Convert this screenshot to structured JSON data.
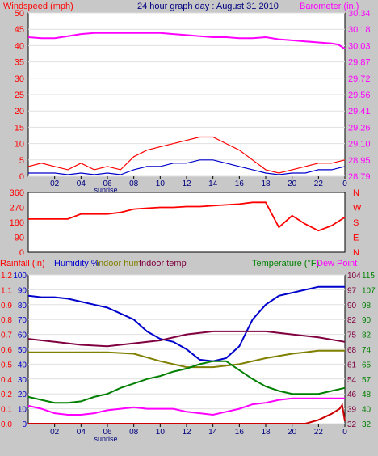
{
  "colors": {
    "background": "#c8c8c8",
    "plot_bg": "#ffffff",
    "grid": "#000000",
    "red": "#ff0000",
    "blue": "#0000cc",
    "magenta": "#ff00ff",
    "olive": "#808000",
    "maroon": "#800040",
    "green": "#008000",
    "darkred": "#cc0000"
  },
  "header": {
    "wind_label": "Windspeed (mph)",
    "title": "24 hour graph day : August 31 2010",
    "baro_label": "Barometer (in.)"
  },
  "bottom_header": {
    "rain_label": "Rainfall (in)",
    "humidity_label": "Humidity %",
    "indoor_hum_label": "Indoor hum",
    "indoor_temp_label": "Indoor temp",
    "temp_label": "Temperature (°F)",
    "dew_label": "Dew Point"
  },
  "chart_data": [
    {
      "type": "line",
      "name": "wind-barometer",
      "x_ticks": [
        "02",
        "04",
        "sunrise 06",
        "08",
        "10",
        "12",
        "14",
        "16",
        "18",
        "20",
        "22",
        "0"
      ],
      "x_tick_labels": [
        "02",
        "04",
        "06",
        "08",
        "10",
        "12",
        "14",
        "16",
        "18",
        "20",
        "22",
        "0"
      ],
      "sunrise_label": "sunrise",
      "xlim": [
        0,
        24
      ],
      "left_axis": {
        "label": "Windspeed (mph)",
        "ticks": [
          0,
          5,
          10,
          15,
          20,
          25,
          30,
          35,
          40,
          45,
          50
        ],
        "ylim": [
          0,
          50
        ]
      },
      "right_axis": {
        "label": "Barometer (in.)",
        "ticks": [
          "28.79",
          "28.95",
          "29.10",
          "29.26",
          "29.41",
          "29.56",
          "29.72",
          "29.87",
          "30.03",
          "30.18",
          "30.34"
        ],
        "ylim": [
          28.79,
          30.34
        ]
      },
      "series": [
        {
          "name": "Barometer",
          "color": "magenta",
          "x": [
            0,
            1,
            2,
            3,
            4,
            5,
            6,
            7,
            8,
            9,
            10,
            11,
            12,
            13,
            14,
            15,
            16,
            17,
            18,
            19,
            20,
            21,
            22,
            23,
            23.5,
            24
          ],
          "y": [
            30.11,
            30.1,
            30.1,
            30.12,
            30.14,
            30.15,
            30.15,
            30.15,
            30.15,
            30.15,
            30.15,
            30.14,
            30.13,
            30.12,
            30.11,
            30.11,
            30.1,
            30.1,
            30.11,
            30.09,
            30.08,
            30.07,
            30.06,
            30.05,
            30.04,
            30.0
          ]
        },
        {
          "name": "Wind gust",
          "color": "red",
          "x": [
            0,
            1,
            2,
            3,
            4,
            5,
            6,
            7,
            8,
            9,
            10,
            11,
            12,
            13,
            14,
            15,
            16,
            17,
            18,
            19,
            20,
            21,
            22,
            23,
            24
          ],
          "y": [
            3,
            4,
            3,
            2,
            4,
            2,
            3,
            2,
            6,
            8,
            9,
            10,
            11,
            12,
            12,
            10,
            8,
            5,
            2,
            1,
            2,
            3,
            4,
            4,
            5
          ]
        },
        {
          "name": "Wind average",
          "color": "blue",
          "x": [
            0,
            1,
            2,
            3,
            4,
            5,
            6,
            7,
            8,
            9,
            10,
            11,
            12,
            13,
            14,
            15,
            16,
            17,
            18,
            19,
            20,
            21,
            22,
            23,
            24
          ],
          "y": [
            1,
            1,
            1,
            0.5,
            1,
            0.5,
            1,
            0.5,
            2,
            3,
            3,
            4,
            4,
            5,
            5,
            4,
            3,
            2,
            1,
            0.5,
            1,
            1,
            2,
            2,
            3
          ]
        }
      ]
    },
    {
      "type": "line",
      "name": "wind-direction",
      "xlim": [
        0,
        24
      ],
      "left_axis": {
        "ticks": [
          0,
          90,
          180,
          270,
          360
        ],
        "ylim": [
          0,
          360
        ]
      },
      "right_axis": {
        "ticks": [
          "N",
          "E",
          "S",
          "W",
          "N"
        ]
      },
      "series": [
        {
          "name": "Direction",
          "color": "red",
          "x": [
            0,
            1,
            2,
            3,
            4,
            5,
            6,
            7,
            8,
            9,
            10,
            11,
            12,
            13,
            14,
            15,
            16,
            17,
            18,
            19,
            20,
            21,
            22,
            23,
            24
          ],
          "y": [
            200,
            200,
            200,
            200,
            230,
            230,
            230,
            240,
            260,
            265,
            270,
            270,
            275,
            275,
            280,
            285,
            290,
            300,
            300,
            150,
            220,
            170,
            130,
            160,
            210
          ]
        }
      ]
    },
    {
      "type": "line",
      "name": "humidity-temperature",
      "xlim": [
        0,
        24
      ],
      "left_axis_rain": {
        "label": "Rainfall (in)",
        "ticks": [
          "0.0",
          "0.1",
          "0.2",
          "0.4",
          "0.5",
          "0.6",
          "0.7",
          "0.8",
          "0.9",
          "1.1",
          "1.2"
        ],
        "ylim": [
          0,
          1.2
        ]
      },
      "left_axis_humidity": {
        "ticks": [
          0,
          10,
          20,
          30,
          40,
          50,
          60,
          70,
          80,
          90,
          100
        ],
        "ylim": [
          0,
          100
        ]
      },
      "right_axis_inner": {
        "ticks": [
          32,
          39,
          46,
          54,
          61,
          68,
          75,
          82,
          90,
          97,
          104
        ]
      },
      "right_axis_outer": {
        "ticks": [
          32,
          40,
          48,
          57,
          65,
          74,
          82,
          90,
          98,
          107,
          115
        ]
      },
      "series": [
        {
          "name": "Humidity",
          "color": "blue",
          "x": [
            0,
            1,
            2,
            3,
            4,
            5,
            6,
            7,
            8,
            9,
            10,
            11,
            12,
            13,
            14,
            15,
            16,
            17,
            18,
            19,
            20,
            21,
            22,
            23,
            24
          ],
          "y": [
            86,
            85,
            85,
            84,
            82,
            80,
            78,
            74,
            70,
            62,
            57,
            55,
            50,
            43,
            42,
            44,
            52,
            70,
            80,
            86,
            88,
            90,
            92,
            92,
            92
          ]
        },
        {
          "name": "Indoor hum",
          "color": "olive",
          "x": [
            0,
            2,
            4,
            6,
            8,
            10,
            12,
            14,
            16,
            18,
            20,
            22,
            24
          ],
          "y": [
            48,
            48,
            48,
            48,
            47,
            42,
            38,
            38,
            40,
            44,
            47,
            49,
            49
          ]
        },
        {
          "name": "Indoor temp",
          "color": "maroon",
          "x": [
            0,
            2,
            4,
            6,
            8,
            10,
            12,
            14,
            16,
            18,
            20,
            22,
            24
          ],
          "y": [
            57,
            55,
            53,
            52,
            54,
            56,
            60,
            62,
            62,
            62,
            60,
            58,
            55
          ]
        },
        {
          "name": "Temperature",
          "color": "green",
          "x": [
            0,
            1,
            2,
            3,
            4,
            5,
            6,
            7,
            8,
            9,
            10,
            11,
            12,
            13,
            14,
            15,
            16,
            17,
            18,
            19,
            20,
            21,
            22,
            23,
            24
          ],
          "y": [
            18,
            16,
            14,
            14,
            15,
            18,
            20,
            24,
            27,
            30,
            32,
            35,
            37,
            40,
            42,
            42,
            36,
            30,
            25,
            22,
            20,
            20,
            20,
            22,
            24
          ]
        },
        {
          "name": "Dew Point",
          "color": "magenta",
          "x": [
            0,
            1,
            2,
            3,
            4,
            5,
            6,
            7,
            8,
            9,
            10,
            11,
            12,
            13,
            14,
            15,
            16,
            17,
            18,
            19,
            20,
            21,
            22,
            23,
            24
          ],
          "y": [
            12,
            10,
            7,
            6,
            6,
            7,
            9,
            10,
            11,
            10,
            10,
            10,
            8,
            7,
            6,
            8,
            10,
            13,
            14,
            16,
            17,
            17,
            17,
            17,
            17
          ]
        },
        {
          "name": "Rainfall",
          "color": "darkred",
          "x": [
            0,
            19,
            20,
            21,
            22,
            23,
            23.6,
            23.8,
            24
          ],
          "y": [
            0,
            0,
            0,
            0,
            0.03,
            0.08,
            0.12,
            0.15,
            0.02
          ]
        }
      ]
    }
  ]
}
